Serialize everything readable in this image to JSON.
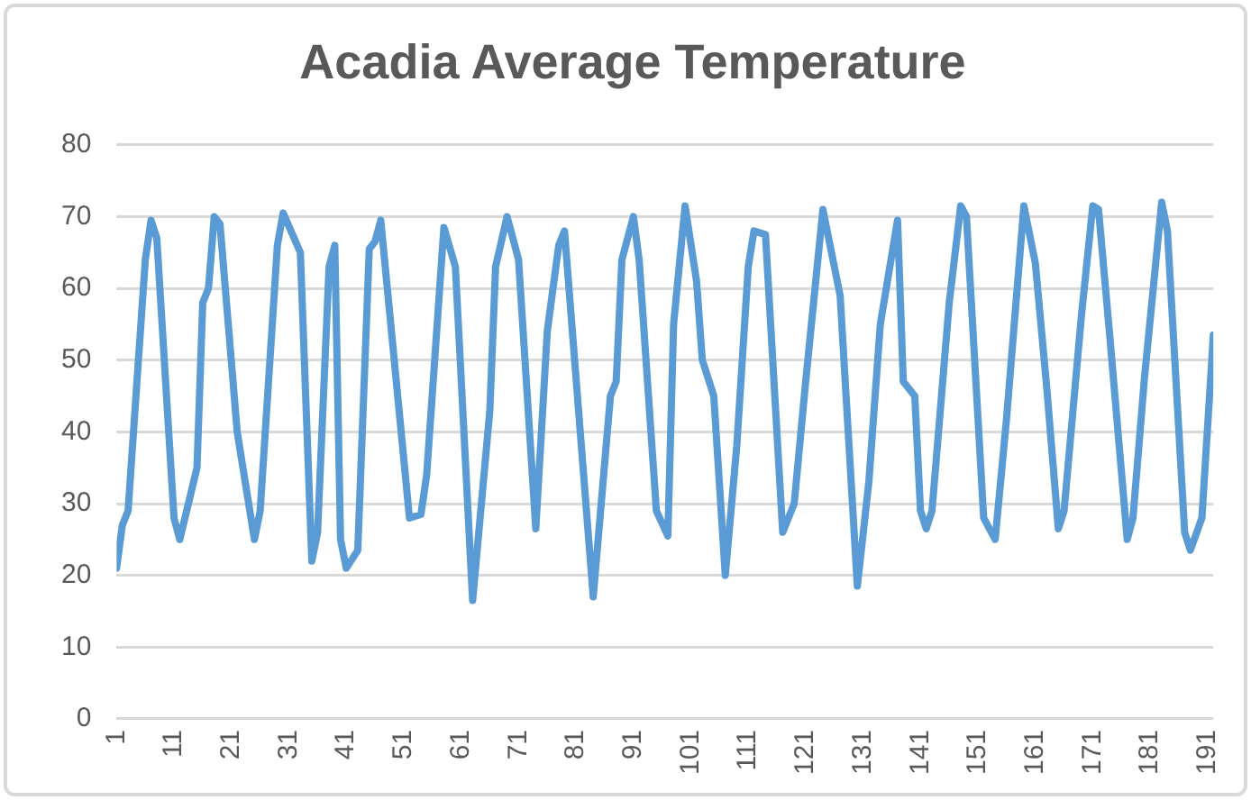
{
  "chart_data": {
    "type": "line",
    "title": "Acadia Average Temperature",
    "x": [
      1,
      2,
      3,
      6,
      7,
      8,
      11,
      12,
      15,
      16,
      17,
      18,
      19,
      22,
      25,
      26,
      29,
      30,
      33,
      35,
      36,
      38,
      39,
      40,
      41,
      43,
      45,
      46,
      47,
      52,
      54,
      55,
      58,
      60,
      63,
      66,
      67,
      69,
      71,
      74,
      76,
      78,
      79,
      84,
      87,
      88,
      89,
      91,
      92,
      95,
      97,
      98,
      100,
      102,
      103,
      105,
      107,
      109,
      111,
      112,
      114,
      117,
      119,
      121,
      124,
      127,
      130,
      132,
      134,
      137,
      138,
      140,
      141,
      142,
      143,
      146,
      148,
      149,
      152,
      154,
      156,
      159,
      161,
      163,
      165,
      166,
      169,
      171,
      172,
      174,
      177,
      178,
      180,
      183,
      184,
      187,
      188,
      190,
      192
    ],
    "series": [
      {
        "color": "#5b9bd5",
        "values": [
          21,
          27,
          29,
          64,
          69.5,
          67,
          28,
          25,
          35,
          58,
          60,
          70,
          69,
          40,
          25,
          29,
          66,
          70.5,
          65,
          22,
          26,
          63,
          66,
          25,
          21,
          23.5,
          65.5,
          66.5,
          69.5,
          28,
          28.5,
          34,
          68.5,
          63,
          16.5,
          43,
          63,
          70,
          64,
          26.5,
          54,
          66,
          68,
          17,
          45,
          47,
          64,
          70,
          64,
          29,
          25.5,
          55,
          71.5,
          61,
          50,
          45,
          20,
          38,
          63,
          68,
          67.5,
          26,
          30,
          47,
          71,
          59,
          18.5,
          33,
          55,
          69.5,
          47,
          45,
          29,
          26.5,
          29,
          58,
          71.5,
          70,
          28,
          25,
          42,
          71.5,
          63.5,
          46,
          26.5,
          29,
          56,
          71.5,
          71,
          53,
          25,
          28,
          47.5,
          72,
          68,
          26,
          23.5,
          28,
          53.5
        ]
      }
    ],
    "xlim": [
      1,
      192
    ],
    "xticks": [
      1,
      11,
      21,
      31,
      41,
      51,
      61,
      71,
      81,
      91,
      101,
      111,
      121,
      131,
      141,
      151,
      161,
      171,
      181,
      191
    ],
    "ylim": [
      0,
      80
    ],
    "yticks": [
      0,
      10,
      20,
      30,
      40,
      50,
      60,
      70,
      80
    ],
    "grid": "y",
    "legend": false,
    "marker": "none",
    "line_style": "solid"
  }
}
